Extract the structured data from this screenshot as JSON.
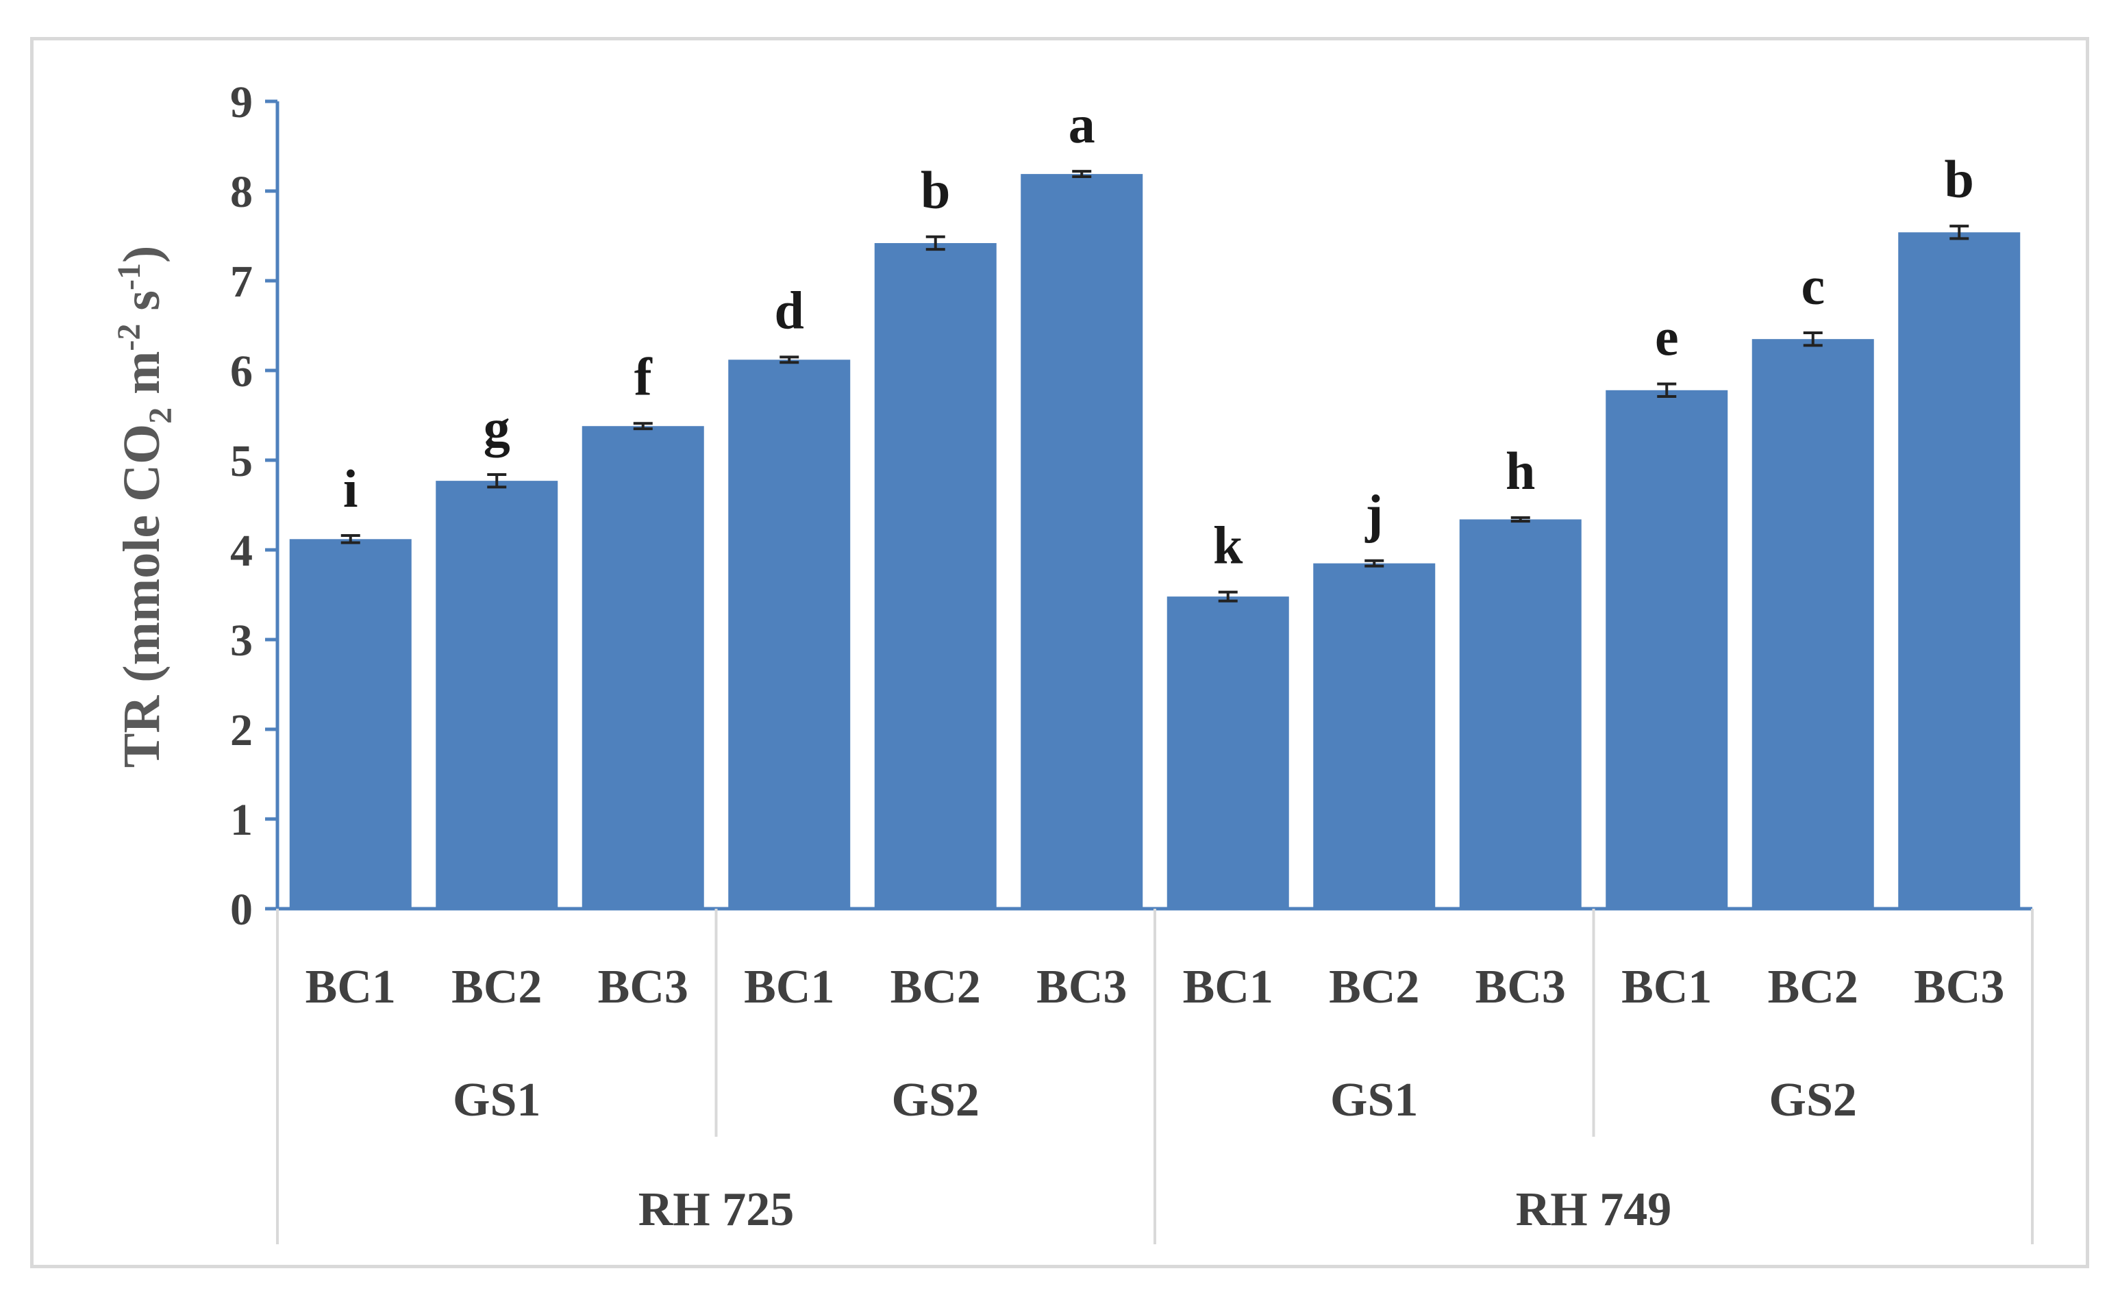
{
  "chart_data": {
    "type": "bar",
    "ylabel": {
      "prefix": "TR (mmole CO",
      "co2_sub": "2",
      "middle": " m",
      "m_sup": "-2",
      "s_part": " s",
      "s_sup": "-1",
      "suffix": ")"
    },
    "ylim": [
      0,
      9
    ],
    "yticks": [
      "0",
      "1",
      "2",
      "3",
      "4",
      "5",
      "6",
      "7",
      "8",
      "9"
    ],
    "grid": false,
    "color": "#4f81bd",
    "categories": [
      "BC1",
      "BC2",
      "BC3",
      "BC1",
      "BC2",
      "BC3",
      "BC1",
      "BC2",
      "BC3",
      "BC1",
      "BC2",
      "BC3"
    ],
    "values": [
      4.12,
      4.77,
      5.38,
      6.12,
      7.42,
      8.19,
      3.48,
      3.85,
      4.34,
      5.78,
      6.35,
      7.54
    ],
    "errors": [
      0.04,
      0.07,
      0.03,
      0.03,
      0.07,
      0.03,
      0.05,
      0.03,
      0.02,
      0.07,
      0.07,
      0.07
    ],
    "significance": [
      "i",
      "g",
      "f",
      "d",
      "b",
      "a",
      "k",
      "j",
      "h",
      "e",
      "c",
      "b"
    ],
    "groups_level1": [
      "GS1",
      "GS2",
      "GS1",
      "GS2"
    ],
    "groups_level2": [
      "RH 725",
      "RH 749"
    ]
  }
}
